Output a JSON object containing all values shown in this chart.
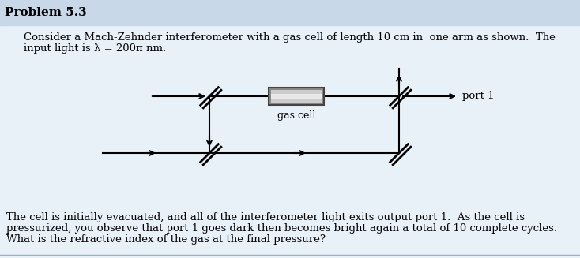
{
  "title": "Problem 5.3",
  "title_bg": "#c8d8e8",
  "bg_color": "#e8f0f8",
  "body_bg": "#f0f4f8",
  "para1": "Consider a Mach-Zehnder interferometer with a gas cell of length 10 cm in  one arm as shown.  The",
  "para1b": "input light is λ = 200π nm.",
  "para2": "The cell is initially evacuated, and all of the interferometer light exits output port 1.  As the cell is",
  "para2b": "pressurized, you observe that port 1 goes dark then becomes bright again a total of 10 complete cycles.",
  "para2c": "What is the refractive index of the gas at the final pressure?",
  "port1_label": "port 1",
  "gas_cell_label": "gas cell",
  "fig_width": 7.34,
  "fig_height": 3.27
}
